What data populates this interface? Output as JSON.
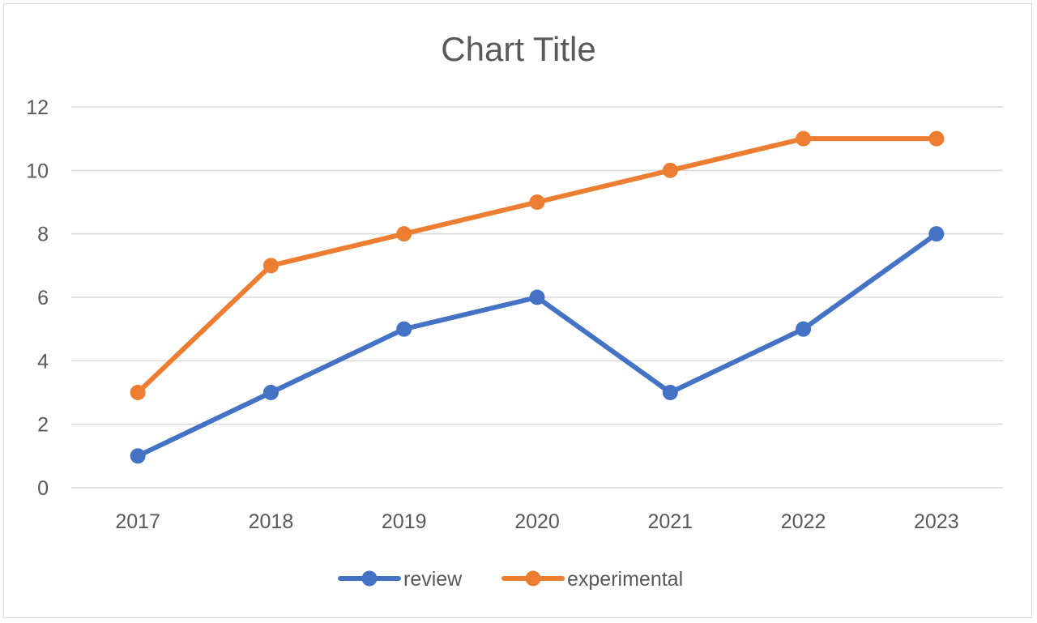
{
  "chart_data": {
    "type": "line",
    "title": "Chart Title",
    "categories": [
      "2017",
      "2018",
      "2019",
      "2020",
      "2021",
      "2022",
      "2023"
    ],
    "series": [
      {
        "name": "review",
        "values": [
          1,
          3,
          5,
          6,
          3,
          5,
          8
        ],
        "color": "#4472c4"
      },
      {
        "name": "experimental",
        "values": [
          3,
          7,
          8,
          9,
          10,
          11,
          11
        ],
        "color": "#ed7d31"
      }
    ],
    "ylim": [
      0,
      12
    ],
    "yticks": [
      "0",
      "2",
      "4",
      "6",
      "8",
      "10",
      "12"
    ],
    "grid": true,
    "legend": "bottom",
    "gridColor": "#d9d9d9",
    "textColor": "#595959"
  }
}
